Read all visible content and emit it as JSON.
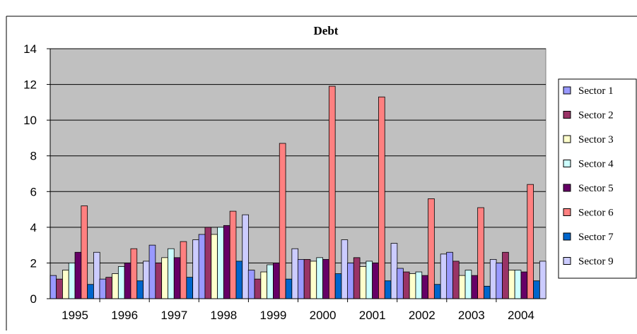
{
  "chart_data": {
    "type": "bar",
    "title": "Debt",
    "xlabel": "",
    "ylabel": "",
    "categories": [
      "1995",
      "1996",
      "1997",
      "1998",
      "1999",
      "2000",
      "2001",
      "2002",
      "2003",
      "2004"
    ],
    "ylim": [
      0,
      14
    ],
    "yticks": [
      "0",
      "2",
      "4",
      "6",
      "8",
      "10",
      "12",
      "14"
    ],
    "grid": true,
    "legend_position": "right",
    "plot_background": "#c0c0c0",
    "series": [
      {
        "name": "Sector 1",
        "color": "#9999ff",
        "values": [
          1.3,
          1.1,
          3.0,
          3.6,
          1.6,
          2.2,
          2.0,
          1.7,
          2.6,
          2.0
        ]
      },
      {
        "name": "Sector 2",
        "color": "#993366",
        "values": [
          1.1,
          1.2,
          2.0,
          4.0,
          1.1,
          2.2,
          2.3,
          1.5,
          2.1,
          2.6
        ]
      },
      {
        "name": "Sector 3",
        "color": "#ffffcc",
        "values": [
          1.6,
          1.4,
          2.3,
          3.6,
          1.5,
          2.1,
          1.8,
          1.4,
          1.3,
          1.6
        ]
      },
      {
        "name": "Sector 4",
        "color": "#ccffff",
        "values": [
          2.0,
          1.8,
          2.8,
          4.0,
          1.9,
          2.3,
          2.1,
          1.5,
          1.6,
          1.6
        ]
      },
      {
        "name": "Sector 5",
        "color": "#660066",
        "values": [
          2.6,
          2.0,
          2.3,
          4.1,
          2.0,
          2.2,
          2.0,
          1.3,
          1.3,
          1.5
        ]
      },
      {
        "name": "Sector 6",
        "color": "#ff8080",
        "values": [
          5.2,
          2.8,
          3.2,
          4.9,
          8.7,
          11.9,
          11.3,
          5.6,
          5.1,
          6.4
        ]
      },
      {
        "name": "Sector 7",
        "color": "#0066cc",
        "values": [
          0.8,
          1.0,
          1.2,
          2.1,
          1.1,
          1.4,
          1.0,
          0.8,
          0.7,
          1.0
        ]
      },
      {
        "name": "Sector 9",
        "color": "#ccccff",
        "values": [
          2.6,
          2.1,
          3.3,
          4.7,
          2.8,
          3.3,
          3.1,
          2.5,
          2.2,
          2.1
        ]
      }
    ]
  }
}
